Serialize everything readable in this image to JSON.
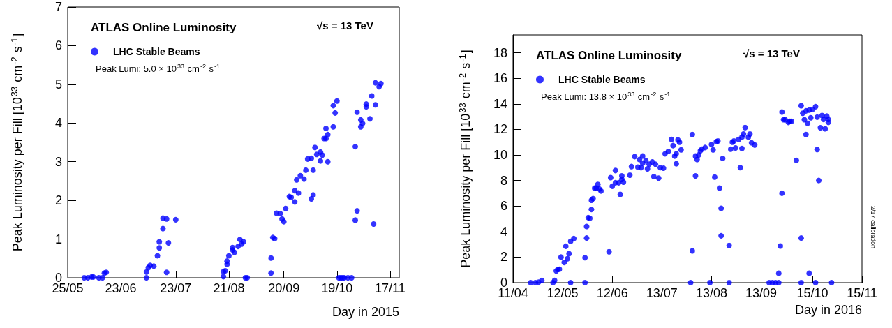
{
  "chart_data": [
    {
      "type": "scatter",
      "title": "ATLAS Online Luminosity",
      "annotations": [
        "√s = 13 TeV",
        "Peak Lumi: 5.0 × 10$^{33}$ cm$^{-2}$ s$^{-1}$"
      ],
      "xlabel": "Day in 2015",
      "ylabel": "Peak Luminosity per Fill [10$^{33}$ cm$^{-2}$ s$^{-1}$]",
      "legend": "top left",
      "marker": "circle",
      "xlim": [
        "2015-05-25",
        "2015-11-22"
      ],
      "xticks": [
        {
          "value": "2015-05-25",
          "label": "25/05"
        },
        {
          "value": "2015-06-23",
          "label": "23/06"
        },
        {
          "value": "2015-07-23",
          "label": "23/07"
        },
        {
          "value": "2015-08-21",
          "label": "21/08"
        },
        {
          "value": "2015-09-20",
          "label": "20/09"
        },
        {
          "value": "2015-10-19",
          "label": "19/10"
        },
        {
          "value": "2015-11-17",
          "label": "17/11"
        }
      ],
      "ylim": [
        0,
        7
      ],
      "yticks": [
        0,
        1,
        2,
        3,
        4,
        5,
        6,
        7
      ],
      "series": [
        {
          "name": "LHC Stable Beams",
          "color": "#0000ff",
          "x": [
            "2015-06-03",
            "2015-06-05",
            "2015-06-07",
            "2015-06-08",
            "2015-06-11",
            "2015-06-13",
            "2015-06-14",
            "2015-06-15",
            "2015-07-07",
            "2015-07-07",
            "2015-07-08",
            "2015-07-09",
            "2015-07-11",
            "2015-07-13",
            "2015-07-14",
            "2015-07-14",
            "2015-07-16",
            "2015-07-16",
            "2015-07-18",
            "2015-07-18",
            "2015-07-19",
            "2015-07-23",
            "2015-08-18",
            "2015-08-18",
            "2015-08-19",
            "2015-08-20",
            "2015-08-20",
            "2015-08-21",
            "2015-08-23",
            "2015-08-23",
            "2015-08-24",
            "2015-08-26",
            "2015-08-27",
            "2015-08-28",
            "2015-08-29",
            "2015-08-30",
            "2015-08-31",
            "2015-09-13",
            "2015-09-13",
            "2015-09-14",
            "2015-09-15",
            "2015-09-16",
            "2015-09-18",
            "2015-09-19",
            "2015-09-20",
            "2015-09-21",
            "2015-09-23",
            "2015-09-24",
            "2015-09-26",
            "2015-09-26",
            "2015-09-28",
            "2015-09-27",
            "2015-09-29",
            "2015-10-01",
            "2015-10-02",
            "2015-10-03",
            "2015-10-05",
            "2015-10-06",
            "2015-10-06",
            "2015-10-05",
            "2015-10-07",
            "2015-10-08",
            "2015-10-10",
            "2015-10-10",
            "2015-10-11",
            "2015-10-12",
            "2015-10-13",
            "2015-10-13",
            "2015-10-14",
            "2015-10-14",
            "2015-10-17",
            "2015-10-18",
            "2015-10-17",
            "2015-10-19",
            "2015-10-20",
            "2015-10-21",
            "2015-10-22",
            "2015-10-23",
            "2015-10-25",
            "2015-10-27",
            "2015-10-29",
            "2015-10-29",
            "2015-10-30",
            "2015-10-30",
            "2015-11-01",
            "2015-11-01",
            "2015-11-02",
            "2015-11-04",
            "2015-11-04",
            "2015-11-06",
            "2015-11-07",
            "2015-11-08",
            "2015-11-09",
            "2015-11-09",
            "2015-11-11",
            "2015-11-12"
          ],
          "values": [
            0,
            0,
            0.02,
            0.02,
            0,
            0,
            0.12,
            0.14,
            0,
            0.15,
            0.26,
            0.32,
            0.3,
            0.57,
            0.77,
            0.93,
            1.27,
            1.54,
            0.14,
            1.52,
            0.9,
            1.5,
            0.03,
            0.16,
            0.18,
            0.35,
            0.43,
            0.57,
            0.78,
            0.72,
            0.66,
            0.81,
            0.99,
            0.87,
            0.93,
            0,
            0,
            0.12,
            0.51,
            1.04,
            1.01,
            1.67,
            1.66,
            1.52,
            1.45,
            1.79,
            2.1,
            2.08,
            1.96,
            2.25,
            2.19,
            2.53,
            2.64,
            2.55,
            2.78,
            3.07,
            3.09,
            2.78,
            2.14,
            2.04,
            3.37,
            3.19,
            3.02,
            3.25,
            3.17,
            3.6,
            3.6,
            3.86,
            3.7,
            3.0,
            3.9,
            4.26,
            4.45,
            4.57,
            0,
            0,
            0,
            0,
            0,
            0,
            1.49,
            3.39,
            4.28,
            1.73,
            3.9,
            4.08,
            3.99,
            4.49,
            4.42,
            4.11,
            4.7,
            1.39,
            4.47,
            5.04,
            4.94,
            5.02
          ]
        }
      ]
    },
    {
      "type": "scatter",
      "title": "ATLAS Online Luminosity",
      "annotations": [
        "√s = 13 TeV",
        "Peak Lumi: 13.8 × 10$^{33}$ cm$^{-2}$ s$^{-1}$",
        "2/17 calibration"
      ],
      "xlabel": "Day in 2016",
      "ylabel": "Peak Luminosity per Fill [10$^{33}$ cm$^{-2}$ s$^{-1}$]",
      "legend": "top left",
      "marker": "circle",
      "xlim": [
        "2016-04-11",
        "2016-11-15"
      ],
      "xticks": [
        {
          "value": "2016-04-11",
          "label": "11/04"
        },
        {
          "value": "2016-05-12",
          "label": "12/05"
        },
        {
          "value": "2016-06-12",
          "label": "12/06"
        },
        {
          "value": "2016-07-13",
          "label": "13/07"
        },
        {
          "value": "2016-08-13",
          "label": "13/08"
        },
        {
          "value": "2016-09-13",
          "label": "13/09"
        },
        {
          "value": "2016-10-15",
          "label": "15/10"
        },
        {
          "value": "2016-11-15",
          "label": "15/11"
        }
      ],
      "ylim": [
        0,
        19.4
      ],
      "yticks": [
        0,
        2,
        4,
        6,
        8,
        10,
        12,
        14,
        16,
        18
      ],
      "series": [
        {
          "name": "LHC Stable Beams",
          "color": "#0000ff",
          "x": [
            "2016-04-22",
            "2016-04-25",
            "2016-04-27",
            "2016-04-29",
            "2016-05-06",
            "2016-05-07",
            "2016-05-08",
            "2016-05-09",
            "2016-05-10",
            "2016-05-11",
            "2016-05-13",
            "2016-05-14",
            "2016-05-15",
            "2016-05-16",
            "2016-05-17",
            "2016-05-17",
            "2016-05-19",
            "2016-05-26",
            "2016-05-26",
            "2016-05-27",
            "2016-05-27",
            "2016-05-28",
            "2016-05-29",
            "2016-05-30",
            "2016-05-30",
            "2016-05-31",
            "2016-06-01",
            "2016-06-03",
            "2016-06-02",
            "2016-06-04",
            "2016-06-05",
            "2016-06-10",
            "2016-06-11",
            "2016-06-12",
            "2016-06-14",
            "2016-06-14",
            "2016-06-16",
            "2016-06-17",
            "2016-06-18",
            "2016-06-18",
            "2016-06-19",
            "2016-06-23",
            "2016-06-24",
            "2016-06-26",
            "2016-06-28",
            "2016-06-29",
            "2016-06-30",
            "2016-07-01",
            "2016-07-01",
            "2016-07-03",
            "2016-07-04",
            "2016-07-05",
            "2016-07-07",
            "2016-07-08",
            "2016-07-09",
            "2016-07-11",
            "2016-07-12",
            "2016-07-14",
            "2016-07-15",
            "2016-07-17",
            "2016-07-19",
            "2016-07-20",
            "2016-07-21",
            "2016-07-22",
            "2016-07-22",
            "2016-07-23",
            "2016-07-24",
            "2016-07-25",
            "2016-07-31",
            "2016-08-01",
            "2016-08-01",
            "2016-08-03",
            "2016-08-03",
            "2016-08-04",
            "2016-08-05",
            "2016-08-06",
            "2016-08-07",
            "2016-08-09",
            "2016-08-12",
            "2016-08-13",
            "2016-08-14",
            "2016-08-15",
            "2016-08-16",
            "2016-08-17",
            "2016-08-18",
            "2016-08-19",
            "2016-08-19",
            "2016-08-20",
            "2016-08-24",
            "2016-08-24",
            "2016-08-25",
            "2016-08-26",
            "2016-08-27",
            "2016-08-28",
            "2016-08-30",
            "2016-08-31",
            "2016-09-01",
            "2016-09-01",
            "2016-09-02",
            "2016-09-03",
            "2016-09-05",
            "2016-09-06",
            "2016-09-07",
            "2016-09-09",
            "2016-09-18",
            "2016-09-20",
            "2016-09-22",
            "2016-09-24",
            "2016-09-24",
            "2016-09-25",
            "2016-09-26",
            "2016-09-26",
            "2016-09-27",
            "2016-09-28",
            "2016-09-30",
            "2016-10-01",
            "2016-10-02",
            "2016-10-05",
            "2016-10-08",
            "2016-10-08",
            "2016-10-08",
            "2016-10-09",
            "2016-10-10",
            "2016-10-11",
            "2016-10-11",
            "2016-10-12",
            "2016-10-13",
            "2016-10-13",
            "2016-10-14",
            "2016-10-15",
            "2016-10-17",
            "2016-10-17",
            "2016-10-18",
            "2016-10-18",
            "2016-10-19",
            "2016-10-20",
            "2016-10-21",
            "2016-10-22",
            "2016-10-23",
            "2016-10-24",
            "2016-10-25",
            "2016-10-25",
            "2016-10-27"
          ],
          "values": [
            0,
            0,
            0.04,
            0.18,
            0,
            0.18,
            0.91,
            1.04,
            1.05,
            2.0,
            1.58,
            2.85,
            1.87,
            2.27,
            0,
            3.24,
            3.45,
            1.95,
            0,
            3.49,
            4.4,
            5.09,
            5.04,
            5.73,
            6.45,
            6.58,
            7.4,
            7.69,
            7.4,
            7.33,
            7.18,
            2.42,
            8.22,
            7.55,
            8.78,
            7.82,
            7.82,
            6.91,
            8.09,
            8.36,
            7.87,
            8.42,
            9.09,
            9.87,
            9.04,
            9.64,
            9.0,
            9.91,
            9.36,
            9.55,
            8.91,
            9.27,
            9.45,
            8.31,
            9.27,
            8.18,
            9.0,
            8.96,
            10.09,
            10.27,
            11.22,
            10.73,
            9.91,
            9.31,
            10.09,
            11.18,
            11.0,
            10.4,
            0,
            2.49,
            11.6,
            8.36,
            9.91,
            9.64,
            10.0,
            10.31,
            10.45,
            10.58,
            0,
            10.82,
            10.4,
            8.27,
            11.04,
            11.09,
            7.4,
            5.82,
            3.67,
            9.73,
            0,
            2.91,
            10.45,
            11.0,
            11.09,
            10.55,
            11.22,
            9.0,
            11.4,
            10.51,
            11.64,
            12.15,
            11.4,
            11.64,
            10.95,
            10.78,
            0,
            0,
            0,
            0,
            0.73,
            2.87,
            7.0,
            13.36,
            12.76,
            12.76,
            12.55,
            12.64,
            12.64,
            9.58,
            0,
            3.49,
            13.85,
            13.27,
            12.76,
            13.45,
            11.6,
            12.49,
            13.51,
            0.73,
            12.91,
            13.55,
            0,
            13.78,
            12.96,
            10.42,
            8.0,
            12.13,
            13.09,
            12.78,
            12.05,
            13.04,
            12.78,
            12.55,
            0
          ]
        }
      ]
    }
  ]
}
